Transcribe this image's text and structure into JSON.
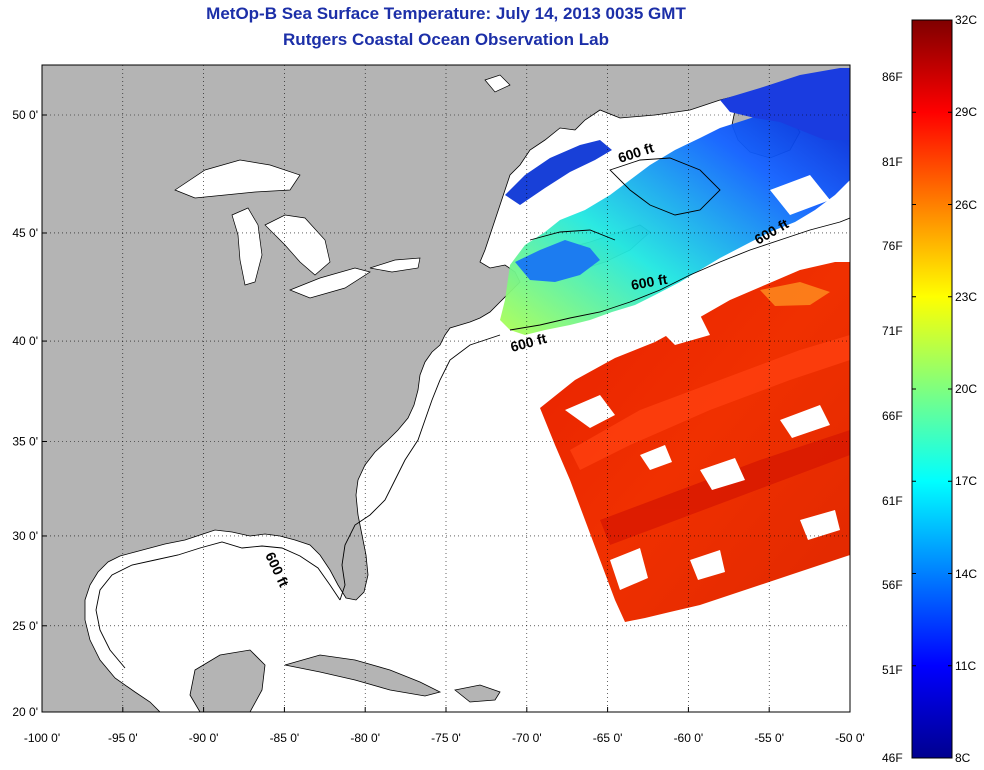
{
  "title": "MetOp-B Sea Surface Temperature:  July 14, 2013 0035 GMT",
  "subtitle": "Rutgers Coastal Ocean Observation Lab",
  "map": {
    "lon_range": [
      -100,
      -50
    ],
    "lat_range": [
      20,
      52
    ],
    "lon_ticks": [
      "-100 0'",
      "-95 0'",
      "-90 0'",
      "-85 0'",
      "-80 0'",
      "-75 0'",
      "-70 0'",
      "-65 0'",
      "-60 0'",
      "-55 0'",
      "-50 0'"
    ],
    "lat_ticks": [
      "50 0'",
      "45 0'",
      "40 0'",
      "35 0'",
      "30 0'",
      "25 0'",
      "20 0'"
    ],
    "land_color": "#b4b4b4",
    "no_data_color": "#ffffff",
    "grid": true
  },
  "contours": {
    "label": "600 ft",
    "labels": [
      "600 ft",
      "600 ft",
      "600 ft",
      "600 ft",
      "600 ft"
    ]
  },
  "colorbar": {
    "celsius": [
      "32C",
      "29C",
      "26C",
      "23C",
      "20C",
      "17C",
      "14C",
      "11C",
      "8C"
    ],
    "fahrenheit": [
      "86F",
      "81F",
      "76F",
      "71F",
      "66F",
      "61F",
      "56F",
      "51F",
      "46F"
    ],
    "colormap": "jet"
  }
}
